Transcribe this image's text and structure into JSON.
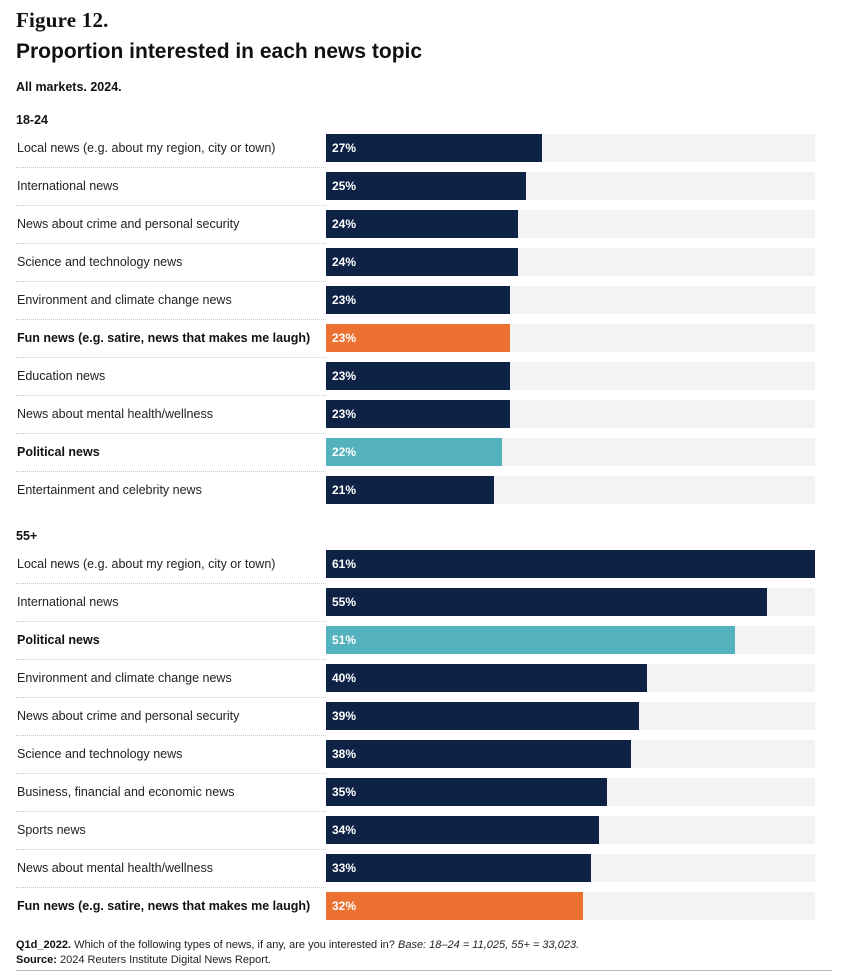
{
  "figure_label": "Figure 12.",
  "colors": {
    "default": "#0e2246",
    "political": "#54b2be",
    "fun": "#ec7130",
    "track": "#f3f3f3"
  },
  "chart_data": {
    "type": "bar",
    "title": "Proportion interested in each news topic",
    "subtitle": "All markets. 2024.",
    "xlim": [
      0,
      61
    ],
    "unit": "%",
    "groups": [
      {
        "name": "18-24",
        "rows": [
          {
            "label": "Local news (e.g. about my region, city or town)",
            "value": 27,
            "display": "27%",
            "highlight": "default",
            "bold": false
          },
          {
            "label": "International news",
            "value": 25,
            "display": "25%",
            "highlight": "default",
            "bold": false
          },
          {
            "label": "News about crime and personal security",
            "value": 24,
            "display": "24%",
            "highlight": "default",
            "bold": false
          },
          {
            "label": "Science and technology news",
            "value": 24,
            "display": "24%",
            "highlight": "default",
            "bold": false
          },
          {
            "label": "Environment and climate change news",
            "value": 23,
            "display": "23%",
            "highlight": "default",
            "bold": false
          },
          {
            "label": "Fun news (e.g. satire, news that makes me laugh)",
            "value": 23,
            "display": "23%",
            "highlight": "fun",
            "bold": true
          },
          {
            "label": "Education news",
            "value": 23,
            "display": "23%",
            "highlight": "default",
            "bold": false
          },
          {
            "label": "News about mental health/wellness",
            "value": 23,
            "display": "23%",
            "highlight": "default",
            "bold": false
          },
          {
            "label": "Political news",
            "value": 22,
            "display": "22%",
            "highlight": "political",
            "bold": true
          },
          {
            "label": "Entertainment and celebrity news",
            "value": 21,
            "display": "21%",
            "highlight": "default",
            "bold": false
          }
        ]
      },
      {
        "name": "55+",
        "rows": [
          {
            "label": "Local news (e.g. about my region, city or town)",
            "value": 61,
            "display": "61%",
            "highlight": "default",
            "bold": false
          },
          {
            "label": "International news",
            "value": 55,
            "display": "55%",
            "highlight": "default",
            "bold": false
          },
          {
            "label": "Political news",
            "value": 51,
            "display": "51%",
            "highlight": "political",
            "bold": true
          },
          {
            "label": "Environment and climate change news",
            "value": 40,
            "display": "40%",
            "highlight": "default",
            "bold": false
          },
          {
            "label": "News about crime and personal security",
            "value": 39,
            "display": "39%",
            "highlight": "default",
            "bold": false
          },
          {
            "label": "Science and technology news",
            "value": 38,
            "display": "38%",
            "highlight": "default",
            "bold": false
          },
          {
            "label": "Business, financial and economic news",
            "value": 35,
            "display": "35%",
            "highlight": "default",
            "bold": false
          },
          {
            "label": "Sports news",
            "value": 34,
            "display": "34%",
            "highlight": "default",
            "bold": false
          },
          {
            "label": "News about mental health/wellness",
            "value": 33,
            "display": "33%",
            "highlight": "default",
            "bold": false
          },
          {
            "label": "Fun news (e.g. satire, news that makes me laugh)",
            "value": 32,
            "display": "32%",
            "highlight": "fun",
            "bold": true
          }
        ]
      }
    ]
  },
  "footnote": {
    "question_code": "Q1d_2022.",
    "question_text": "Which of the following types of news, if any, are you interested in?",
    "base_text": "Base: 18–24 = 11,025, 55+ = 33,023.",
    "source_label": "Source:",
    "source_text": "2024 Reuters Institute Digital News Report."
  }
}
